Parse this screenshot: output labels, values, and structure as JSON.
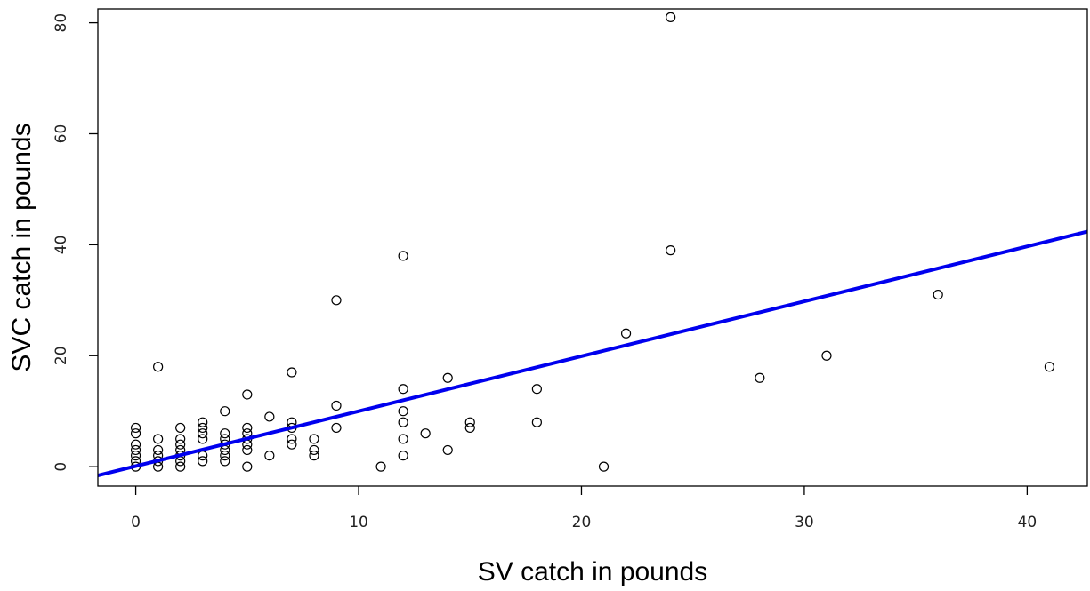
{
  "chart_data": {
    "type": "scatter",
    "title": "",
    "xlabel": "SV catch in pounds",
    "ylabel": "SVC catch in pounds",
    "xlim": [
      -1.7,
      42.7
    ],
    "ylim": [
      -3.5,
      82.5
    ],
    "x_ticks": [
      0,
      10,
      20,
      30,
      40
    ],
    "y_ticks": [
      0,
      20,
      40,
      60,
      80
    ],
    "x_tick_labels": [
      "0",
      "10",
      "20",
      "30",
      "40"
    ],
    "y_tick_labels": [
      "0",
      "20",
      "40",
      "60",
      "80"
    ],
    "grid": false,
    "legend": "none",
    "series": [
      {
        "marker": "open-circle",
        "color": "#000000",
        "points": [
          [
            0,
            0
          ],
          [
            0,
            1
          ],
          [
            0,
            2
          ],
          [
            0,
            3
          ],
          [
            0,
            4
          ],
          [
            0,
            6
          ],
          [
            0,
            7
          ],
          [
            1,
            0
          ],
          [
            1,
            1
          ],
          [
            1,
            2
          ],
          [
            1,
            3
          ],
          [
            1,
            5
          ],
          [
            1,
            18
          ],
          [
            2,
            0
          ],
          [
            2,
            1
          ],
          [
            2,
            2
          ],
          [
            2,
            3
          ],
          [
            2,
            4
          ],
          [
            2,
            5
          ],
          [
            2,
            7
          ],
          [
            3,
            1
          ],
          [
            3,
            2
          ],
          [
            3,
            5
          ],
          [
            3,
            6
          ],
          [
            3,
            7
          ],
          [
            3,
            8
          ],
          [
            4,
            1
          ],
          [
            4,
            2
          ],
          [
            4,
            3
          ],
          [
            4,
            4
          ],
          [
            4,
            5
          ],
          [
            4,
            6
          ],
          [
            4,
            10
          ],
          [
            5,
            0
          ],
          [
            5,
            3
          ],
          [
            5,
            4
          ],
          [
            5,
            5
          ],
          [
            5,
            6
          ],
          [
            5,
            7
          ],
          [
            5,
            13
          ],
          [
            6,
            2
          ],
          [
            6,
            9
          ],
          [
            7,
            4
          ],
          [
            7,
            5
          ],
          [
            7,
            7
          ],
          [
            7,
            8
          ],
          [
            7,
            17
          ],
          [
            8,
            2
          ],
          [
            8,
            3
          ],
          [
            8,
            5
          ],
          [
            9,
            7
          ],
          [
            9,
            11
          ],
          [
            9,
            30
          ],
          [
            11,
            0
          ],
          [
            12,
            2
          ],
          [
            12,
            5
          ],
          [
            12,
            8
          ],
          [
            12,
            10
          ],
          [
            12,
            14
          ],
          [
            12,
            38
          ],
          [
            13,
            6
          ],
          [
            14,
            3
          ],
          [
            14,
            16
          ],
          [
            15,
            7
          ],
          [
            15,
            8
          ],
          [
            18,
            8
          ],
          [
            18,
            14
          ],
          [
            21,
            0
          ],
          [
            22,
            24
          ],
          [
            24,
            39
          ],
          [
            24,
            81
          ],
          [
            28,
            16
          ],
          [
            31,
            20
          ],
          [
            36,
            31
          ],
          [
            41,
            18
          ]
        ]
      }
    ],
    "fit_line": {
      "type": "linear",
      "color": "#0000ee",
      "intercept": 0.1,
      "slope": 0.99
    }
  }
}
